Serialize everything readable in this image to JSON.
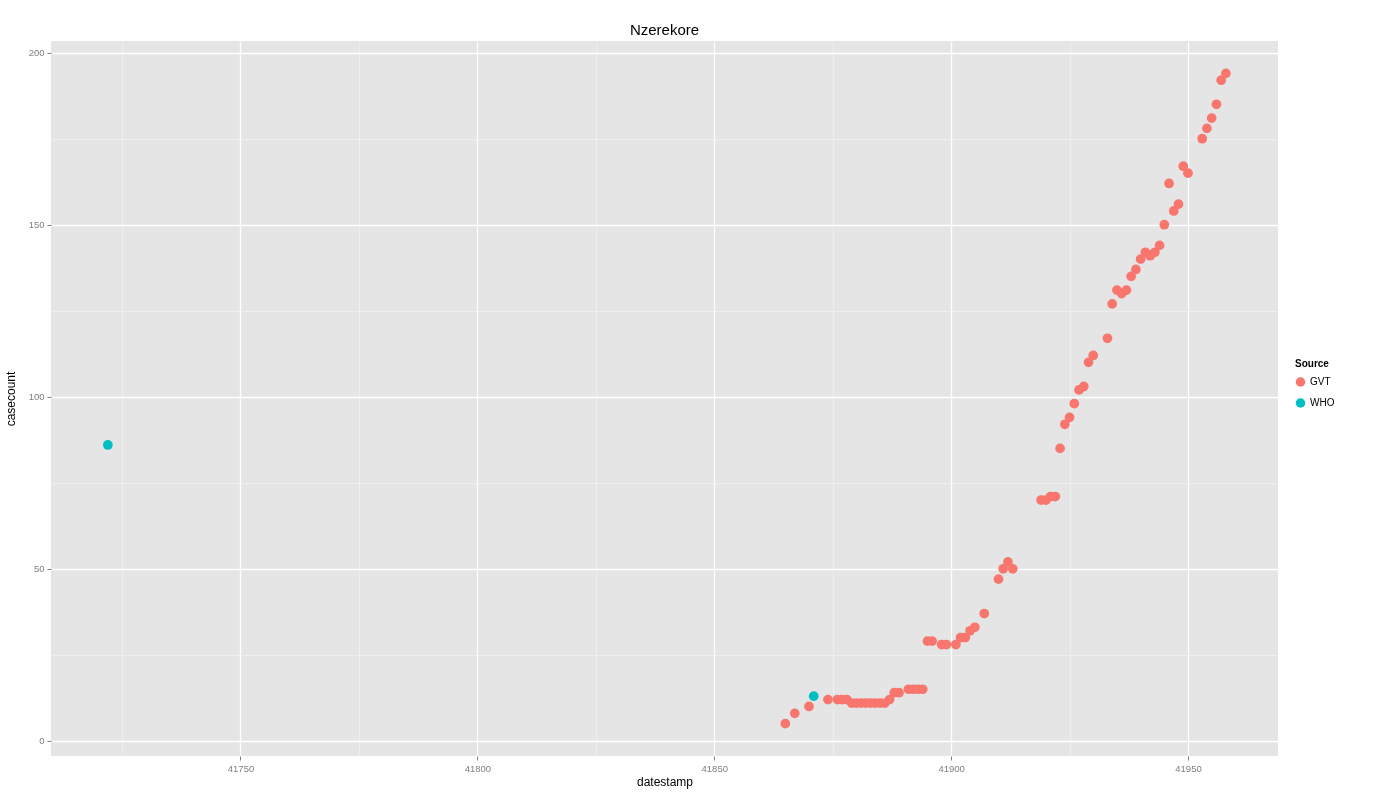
{
  "chart_data": {
    "type": "scatter",
    "title": "Nzerekore",
    "xlabel": "datestamp",
    "ylabel": "casecount",
    "legend_title": "Source",
    "series": [
      {
        "name": "GVT",
        "color": "#f8766d",
        "x": [
          41865,
          41867,
          41870,
          41874,
          41876,
          41877,
          41878,
          41879,
          41880,
          41881,
          41882,
          41883,
          41884,
          41885,
          41886,
          41887,
          41888,
          41889,
          41891,
          41892,
          41893,
          41894,
          41895,
          41896,
          41898,
          41899,
          41901,
          41902,
          41903,
          41904,
          41905,
          41907,
          41910,
          41911,
          41912,
          41913,
          41919,
          41920,
          41921,
          41922,
          41923,
          41924,
          41925,
          41926,
          41927,
          41928,
          41929,
          41930,
          41933,
          41934,
          41935,
          41936,
          41937,
          41938,
          41939,
          41940,
          41941,
          41942,
          41943,
          41944,
          41945,
          41946,
          41947,
          41948,
          41949,
          41950,
          41953,
          41954,
          41955,
          41956,
          41957,
          41958
        ],
        "values": [
          5,
          8,
          10,
          12,
          12,
          12,
          12,
          11,
          11,
          11,
          11,
          11,
          11,
          11,
          11,
          12,
          14,
          14,
          15,
          15,
          15,
          15,
          29,
          29,
          28,
          28,
          28,
          30,
          30,
          32,
          33,
          37,
          47,
          50,
          52,
          50,
          70,
          70,
          71,
          71,
          85,
          92,
          94,
          98,
          102,
          103,
          110,
          112,
          117,
          127,
          131,
          130,
          131,
          135,
          137,
          140,
          142,
          141,
          142,
          144,
          150,
          162,
          154,
          156,
          167,
          165,
          175,
          178,
          181,
          185,
          192,
          194
        ]
      },
      {
        "name": "WHO",
        "color": "#00bfc4",
        "x": [
          41722,
          41871
        ],
        "values": [
          86,
          13
        ]
      }
    ],
    "xlim": [
      41710,
      41969
    ],
    "ylim": [
      -4.4,
      203.4
    ],
    "xticks": [
      {
        "value": 41725,
        "label": null
      },
      41750,
      {
        "value": 41775,
        "label": null
      },
      41800,
      {
        "value": 41825,
        "label": null
      },
      41850,
      {
        "value": 41875,
        "label": null
      },
      41900,
      {
        "value": 41925,
        "label": null
      },
      41950
    ],
    "yticks": [
      0,
      {
        "value": 25,
        "label": null
      },
      50,
      {
        "value": 75,
        "label": null
      },
      100,
      {
        "value": 125,
        "label": null
      },
      150,
      {
        "value": 175,
        "label": null
      },
      200
    ],
    "grid": true,
    "legend": "right",
    "marker": "circle"
  }
}
